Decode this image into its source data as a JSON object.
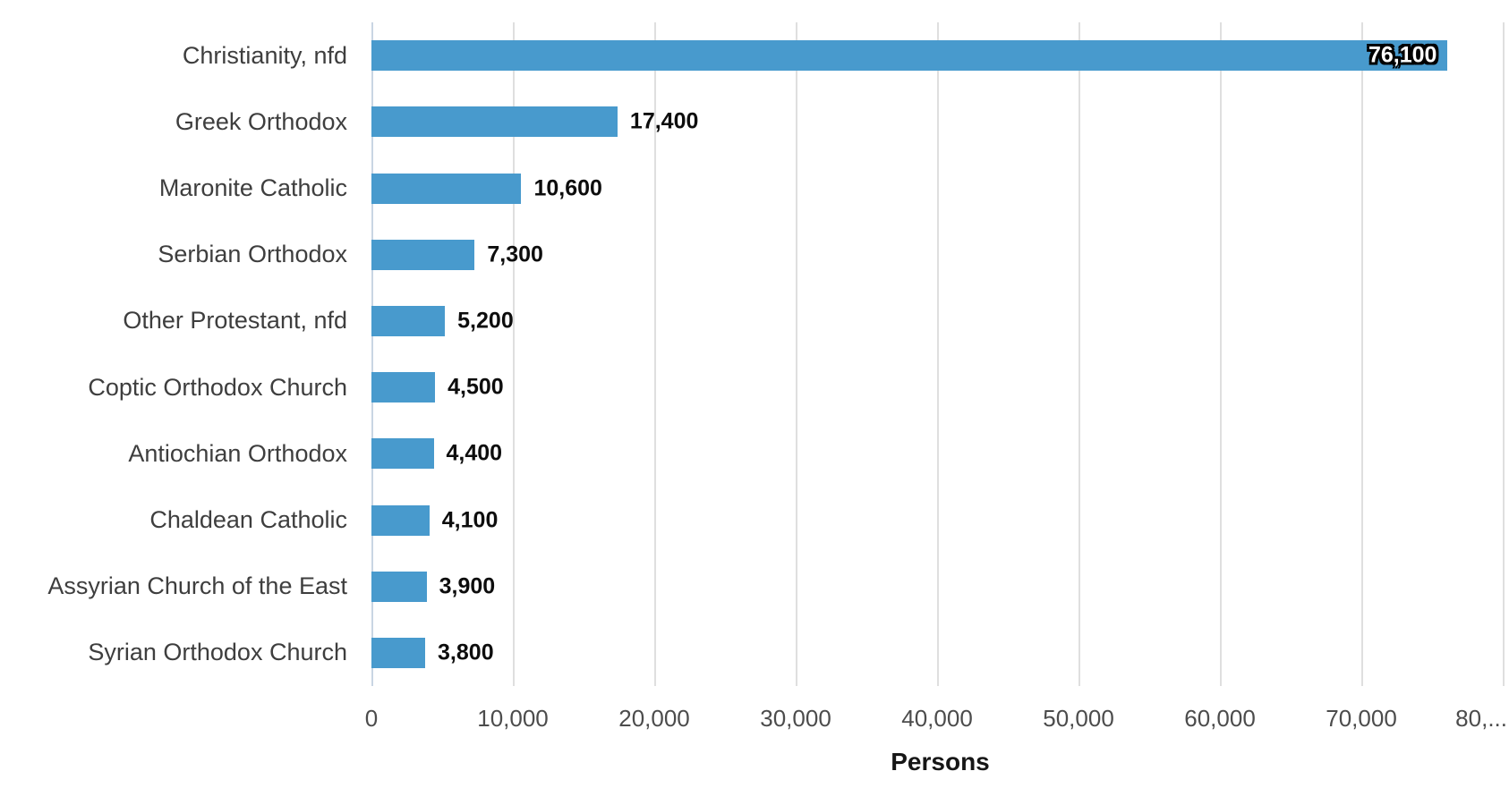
{
  "chart_data": {
    "type": "bar",
    "orientation": "horizontal",
    "categories": [
      "Christianity, nfd",
      "Greek Orthodox",
      "Maronite Catholic",
      "Serbian Orthodox",
      "Other Protestant, nfd",
      "Coptic Orthodox Church",
      "Antiochian Orthodox",
      "Chaldean Catholic",
      "Assyrian Church of the East",
      "Syrian Orthodox Church"
    ],
    "values": [
      76100,
      17400,
      10600,
      7300,
      5200,
      4500,
      4400,
      4100,
      3900,
      3800
    ],
    "value_labels": [
      "76,100",
      "17,400",
      "10,600",
      "7,300",
      "5,200",
      "4,500",
      "4,400",
      "4,100",
      "3,900",
      "3,800"
    ],
    "xlabel": "Persons",
    "x_ticks": [
      {
        "value": 0,
        "label": "0"
      },
      {
        "value": 10000,
        "label": "10,000"
      },
      {
        "value": 20000,
        "label": "20,000"
      },
      {
        "value": 30000,
        "label": "30,000"
      },
      {
        "value": 40000,
        "label": "40,000"
      },
      {
        "value": 50000,
        "label": "50,000"
      },
      {
        "value": 60000,
        "label": "60,000"
      },
      {
        "value": 70000,
        "label": "70,000"
      },
      {
        "value": 80000,
        "label": "80,..."
      }
    ],
    "xlim": [
      0,
      80440
    ],
    "grid": "vertical-only",
    "legend": "none",
    "bar_color": "#489acd"
  }
}
